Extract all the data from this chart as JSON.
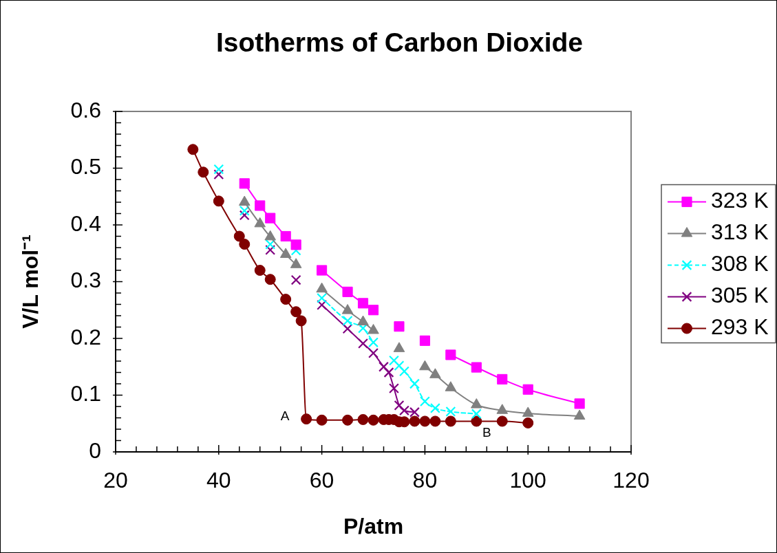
{
  "chart_data": {
    "type": "line",
    "title": "Isotherms of Carbon Dioxide",
    "xlabel": "P/atm",
    "ylabel": "V/L mol⁻¹",
    "xlim": [
      20,
      120
    ],
    "ylim": [
      0,
      0.6
    ],
    "xticks": [
      20,
      {
        "value": 24,
        "label": null
      },
      {
        "value": 28,
        "label": null
      },
      {
        "value": 32,
        "label": null
      },
      {
        "value": 36,
        "label": null
      },
      40,
      {
        "value": 44,
        "label": null
      },
      {
        "value": 48,
        "label": null
      },
      {
        "value": 52,
        "label": null
      },
      {
        "value": 56,
        "label": null
      },
      60,
      {
        "value": 64,
        "label": null
      },
      {
        "value": 68,
        "label": null
      },
      {
        "value": 72,
        "label": null
      },
      {
        "value": 76,
        "label": null
      },
      80,
      {
        "value": 84,
        "label": null
      },
      {
        "value": 88,
        "label": null
      },
      {
        "value": 92,
        "label": null
      },
      {
        "value": 96,
        "label": null
      },
      100,
      {
        "value": 104,
        "label": null
      },
      {
        "value": 108,
        "label": null
      },
      {
        "value": 112,
        "label": null
      },
      {
        "value": 116,
        "label": null
      },
      120
    ],
    "yticks": [
      0,
      {
        "value": 0.02,
        "label": null
      },
      {
        "value": 0.04,
        "label": null
      },
      {
        "value": 0.06,
        "label": null
      },
      {
        "value": 0.08,
        "label": null
      },
      0.1,
      {
        "value": 0.12,
        "label": null
      },
      {
        "value": 0.14,
        "label": null
      },
      {
        "value": 0.16,
        "label": null
      },
      {
        "value": 0.18,
        "label": null
      },
      0.2,
      {
        "value": 0.22,
        "label": null
      },
      {
        "value": 0.24,
        "label": null
      },
      {
        "value": 0.26,
        "label": null
      },
      {
        "value": 0.28,
        "label": null
      },
      0.3,
      {
        "value": 0.32,
        "label": null
      },
      {
        "value": 0.34,
        "label": null
      },
      {
        "value": 0.36,
        "label": null
      },
      {
        "value": 0.38,
        "label": null
      },
      0.4,
      {
        "value": 0.42,
        "label": null
      },
      {
        "value": 0.44,
        "label": null
      },
      {
        "value": 0.46,
        "label": null
      },
      {
        "value": 0.48,
        "label": null
      },
      0.5,
      {
        "value": 0.52,
        "label": null
      },
      {
        "value": 0.54,
        "label": null
      },
      {
        "value": 0.56,
        "label": null
      },
      {
        "value": 0.58,
        "label": null
      },
      0.6
    ],
    "legend": "right",
    "annotations": [
      {
        "text": "A",
        "x": 57,
        "y": 0.058
      },
      {
        "text": "B",
        "x": 90,
        "y": 0.054
      }
    ],
    "series": [
      {
        "name": "323 K",
        "color": "#ff00ff",
        "marker": "square",
        "line_style": "solid",
        "x": [
          45,
          48,
          50,
          53,
          55,
          null,
          60,
          65,
          68,
          70,
          null,
          75,
          null,
          80,
          null,
          85,
          90,
          95,
          100,
          110
        ],
        "values": [
          0.473,
          0.434,
          0.412,
          0.38,
          0.365,
          null,
          0.32,
          0.282,
          0.262,
          0.25,
          null,
          0.221,
          null,
          0.196,
          null,
          0.171,
          0.149,
          0.128,
          0.11,
          0.085
        ]
      },
      {
        "name": "313 K",
        "color": "#808080",
        "marker": "triangle",
        "line_style": "solid",
        "x": [
          45,
          48,
          50,
          53,
          55,
          null,
          60,
          65,
          68,
          70,
          null,
          75,
          null,
          80,
          82,
          85,
          90,
          95,
          100,
          110
        ],
        "values": [
          0.44,
          0.402,
          0.379,
          0.348,
          0.33,
          null,
          0.287,
          0.249,
          0.229,
          0.214,
          null,
          0.182,
          null,
          0.15,
          0.136,
          0.113,
          0.083,
          0.073,
          0.068,
          0.063
        ]
      },
      {
        "name": "308 K",
        "color": "#00ffff",
        "marker": "cross",
        "line_style": "dashed",
        "x": [
          40,
          null,
          45,
          null,
          50,
          null,
          55,
          null,
          60,
          65,
          68,
          70,
          null,
          74,
          null,
          75,
          null,
          76,
          78,
          80,
          82,
          85,
          90
        ],
        "values": [
          0.498,
          null,
          0.425,
          null,
          0.366,
          null,
          0.355,
          null,
          0.271,
          0.231,
          0.218,
          0.193,
          null,
          0.161,
          null,
          0.152,
          null,
          0.142,
          0.12,
          0.089,
          0.077,
          0.071,
          0.067
        ]
      },
      {
        "name": "305 K",
        "color": "#800080",
        "marker": "cross",
        "line_style": "solid",
        "x": [
          40,
          null,
          45,
          null,
          50,
          null,
          55,
          null,
          60,
          65,
          68,
          70,
          72,
          73,
          74,
          75,
          76,
          78
        ],
        "values": [
          0.489,
          null,
          0.417,
          null,
          0.356,
          null,
          0.303,
          null,
          0.259,
          0.217,
          0.191,
          0.174,
          0.15,
          0.14,
          0.112,
          0.082,
          0.073,
          0.07
        ]
      },
      {
        "name": "293 K",
        "color": "#800000",
        "marker": "circle",
        "line_style": "solid",
        "x": [
          35,
          37,
          40,
          44,
          45,
          48,
          50,
          53,
          55,
          56,
          57,
          60,
          65,
          68,
          70,
          72,
          73,
          74,
          75,
          76,
          78,
          80,
          82,
          85,
          90,
          95,
          100
        ],
        "values": [
          0.533,
          0.493,
          0.442,
          0.38,
          0.366,
          0.32,
          0.304,
          0.269,
          0.247,
          0.231,
          0.058,
          0.056,
          0.056,
          0.057,
          0.056,
          0.057,
          0.057,
          0.057,
          0.053,
          0.053,
          0.054,
          0.054,
          0.054,
          0.054,
          0.054,
          0.054,
          0.051
        ]
      }
    ]
  }
}
